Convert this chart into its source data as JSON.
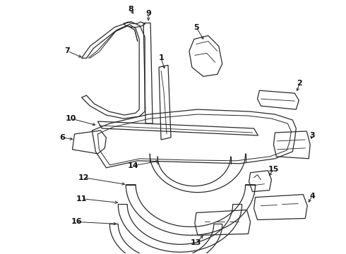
{
  "bg_color": "#ffffff",
  "line_color": "#2a2a2a",
  "text_color": "#111111",
  "lw": 0.9,
  "fig_w": 4.9,
  "fig_h": 3.6,
  "dpi": 100
}
